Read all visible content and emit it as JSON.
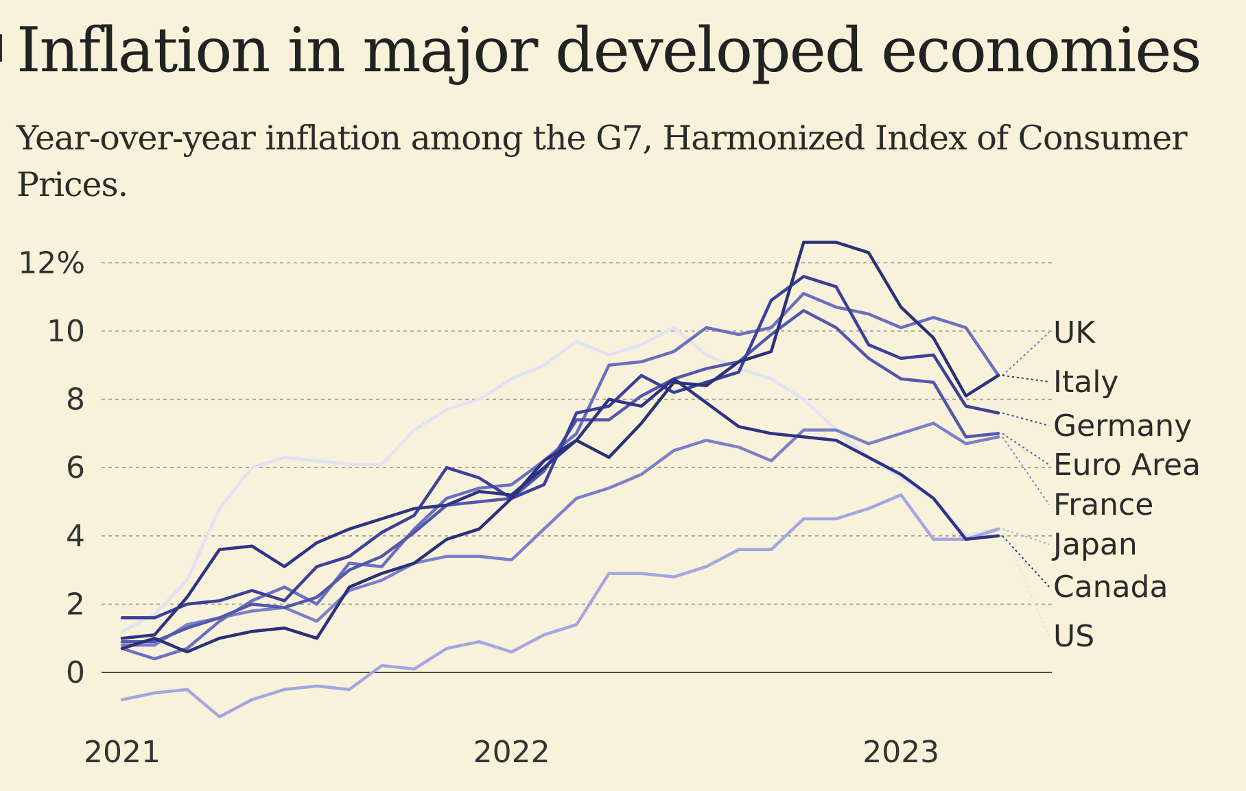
{
  "title": "Inflation in major developed economies",
  "subtitle": "Year-over-year inflation among the G7, Harmonized Index of Consumer Prices.",
  "chart_data": {
    "type": "line",
    "x": [
      "2021-01",
      "2021-02",
      "2021-03",
      "2021-04",
      "2021-05",
      "2021-06",
      "2021-07",
      "2021-08",
      "2021-09",
      "2021-10",
      "2021-11",
      "2021-12",
      "2022-01",
      "2022-02",
      "2022-03",
      "2022-04",
      "2022-05",
      "2022-06",
      "2022-07",
      "2022-08",
      "2022-09",
      "2022-10",
      "2022-11",
      "2022-12",
      "2023-01",
      "2023-02",
      "2023-03",
      "2023-04"
    ],
    "x_ticks": [
      "2021",
      "2022",
      "2023"
    ],
    "y_ticks": [
      "12%",
      "10",
      "8",
      "6",
      "4",
      "2",
      "0"
    ],
    "ylim": [
      -1.5,
      12.5
    ],
    "grid": true,
    "legend": "right",
    "series": [
      {
        "name": "UK",
        "color": "#6a6fc0",
        "values": [
          0.7,
          0.4,
          0.7,
          1.5,
          2.1,
          2.5,
          2.0,
          3.2,
          3.1,
          4.2,
          5.1,
          5.4,
          5.5,
          6.2,
          7.0,
          9.0,
          9.1,
          9.4,
          10.1,
          9.9,
          10.1,
          11.1,
          10.7,
          10.5,
          10.1,
          10.4,
          10.1,
          8.7
        ]
      },
      {
        "name": "Italy",
        "color": "#2b3178",
        "values": [
          0.7,
          1.0,
          0.6,
          1.0,
          1.2,
          1.3,
          1.0,
          2.5,
          2.9,
          3.2,
          3.9,
          4.2,
          5.1,
          6.2,
          6.8,
          6.3,
          7.3,
          8.5,
          8.4,
          9.1,
          9.4,
          12.6,
          12.6,
          12.3,
          10.7,
          9.8,
          8.1,
          8.7
        ]
      },
      {
        "name": "Germany",
        "color": "#3b409a",
        "values": [
          1.6,
          1.6,
          2.0,
          2.1,
          2.4,
          2.1,
          3.1,
          3.4,
          4.1,
          4.6,
          6.0,
          5.7,
          5.1,
          5.5,
          7.6,
          7.8,
          8.7,
          8.2,
          8.5,
          8.8,
          10.9,
          11.6,
          11.3,
          9.6,
          9.2,
          9.3,
          7.8,
          7.6
        ]
      },
      {
        "name": "Euro Area",
        "color": "#5358ad",
        "values": [
          0.9,
          0.9,
          1.3,
          1.6,
          2.0,
          1.9,
          2.2,
          3.0,
          3.4,
          4.1,
          4.9,
          5.0,
          5.1,
          5.9,
          7.4,
          7.4,
          8.1,
          8.6,
          8.9,
          9.1,
          9.9,
          10.6,
          10.1,
          9.2,
          8.6,
          8.5,
          6.9,
          7.0
        ]
      },
      {
        "name": "France",
        "color": "#7c80c9",
        "values": [
          0.8,
          0.8,
          1.4,
          1.6,
          1.8,
          1.9,
          1.5,
          2.4,
          2.7,
          3.2,
          3.4,
          3.4,
          3.3,
          4.2,
          5.1,
          5.4,
          5.8,
          6.5,
          6.8,
          6.6,
          6.2,
          7.1,
          7.1,
          6.7,
          7.0,
          7.3,
          6.7,
          6.9
        ]
      },
      {
        "name": "Japan",
        "color": "#a3a6e2",
        "values": [
          -0.8,
          -0.6,
          -0.5,
          -1.3,
          -0.8,
          -0.5,
          -0.4,
          -0.5,
          0.2,
          0.1,
          0.7,
          0.9,
          0.6,
          1.1,
          1.4,
          2.9,
          2.9,
          2.8,
          3.1,
          3.6,
          3.6,
          4.5,
          4.5,
          4.8,
          5.2,
          3.9,
          3.9,
          4.2
        ]
      },
      {
        "name": "Canada",
        "color": "#2e3484",
        "values": [
          1.0,
          1.1,
          2.2,
          3.6,
          3.7,
          3.1,
          3.8,
          4.2,
          4.5,
          4.8,
          4.9,
          5.3,
          5.2,
          6.0,
          6.8,
          8.0,
          7.8,
          8.6,
          7.9,
          7.2,
          7.0,
          6.9,
          6.8,
          6.3,
          5.8,
          5.1,
          3.9,
          4.0
        ]
      },
      {
        "name": "US",
        "color": "#e2e2f4",
        "values": [
          1.2,
          1.7,
          2.7,
          4.8,
          6.0,
          6.3,
          6.2,
          6.1,
          6.1,
          7.1,
          7.7,
          8.0,
          8.6,
          9.0,
          9.7,
          9.3,
          9.6,
          10.1,
          9.3,
          8.9,
          8.6,
          8.0,
          7.1,
          6.3,
          5.7,
          5.1,
          4.0,
          4.2
        ]
      }
    ]
  }
}
